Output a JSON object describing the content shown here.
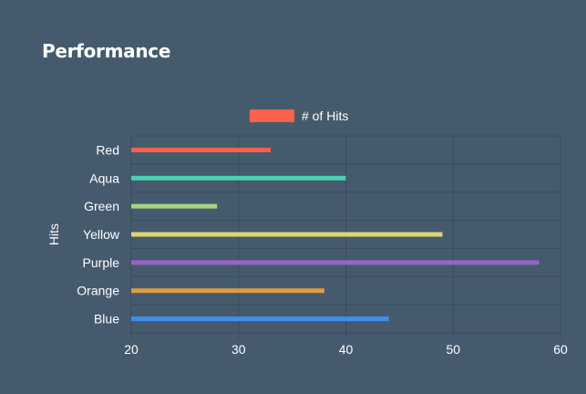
{
  "title": "Performance",
  "legend": {
    "label": "# of Hits",
    "color": "#ff604c"
  },
  "colors": {
    "background": "#465a6d",
    "grid": "#3a4b5b",
    "text": "#ffffff"
  },
  "chart_data": {
    "type": "bar",
    "orientation": "horizontal",
    "title": "Performance",
    "ylabel": "Hits",
    "xlabel": "",
    "xlim": [
      20,
      60
    ],
    "xticks": [
      20,
      30,
      40,
      50,
      60
    ],
    "grid": true,
    "legend_position": "top-center",
    "categories": [
      "Red",
      "Aqua",
      "Green",
      "Yellow",
      "Purple",
      "Orange",
      "Blue"
    ],
    "series": [
      {
        "name": "# of Hits",
        "values": [
          33,
          40,
          28,
          49,
          58,
          38,
          44
        ]
      }
    ],
    "bar_colors": [
      "#ff604c",
      "#4dd0b4",
      "#a5d57f",
      "#ded66e",
      "#9a62c8",
      "#e09a40",
      "#3f8ef0"
    ]
  }
}
